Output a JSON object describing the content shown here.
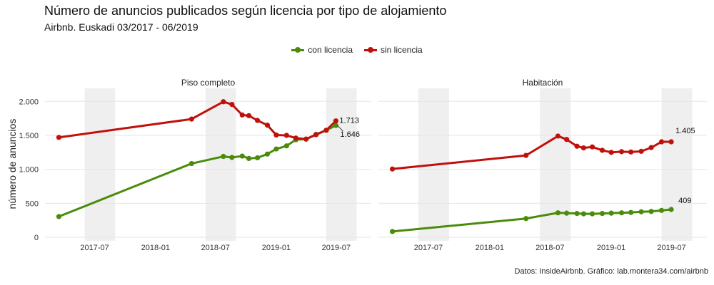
{
  "title": "Número de anuncios publicados según licencia por tipo de alojamiento",
  "subtitle": "Airbnb. Euskadi 03/2017 - 06/2019",
  "caption": "Datos: InsideAirbnb. Gráfico: lab.montera34.com/airbnb",
  "colors": {
    "con_licencia": "#4a8c0a",
    "sin_licencia": "#c0100c",
    "shade": "#efefef",
    "grid": "#e6e6e6"
  },
  "legend": [
    {
      "label": "con licencia",
      "color": "#4a8c0a"
    },
    {
      "label": "sin licencia",
      "color": "#c0100c"
    }
  ],
  "chart_data": {
    "type": "line",
    "ylabel": "número de anuncios",
    "ylim": [
      0,
      2150
    ],
    "yticks": [
      0,
      500,
      1000,
      1500,
      2000
    ],
    "ytick_labels": [
      "0",
      "500",
      "1.000",
      "1.500",
      "2.000"
    ],
    "xlim": [
      "2017-02-01",
      "2019-10-15"
    ],
    "xticks": [
      "2017-07-01",
      "2018-01-01",
      "2018-07-01",
      "2019-01-01",
      "2019-07-01"
    ],
    "xtick_labels": [
      "2017-07",
      "2018-01",
      "2018-07",
      "2019-01",
      "2019-07"
    ],
    "shaded_periods": [
      [
        "2017-06-01",
        "2017-09-01"
      ],
      [
        "2018-06-01",
        "2018-09-01"
      ],
      [
        "2019-06-01",
        "2019-09-01"
      ]
    ],
    "panels": [
      {
        "name": "Piso completo",
        "series": [
          {
            "name": "con licencia",
            "x": [
              "2017-03-15",
              "2018-04-20",
              "2018-07-25",
              "2018-08-20",
              "2018-09-20",
              "2018-10-10",
              "2018-11-05",
              "2018-12-05",
              "2019-01-01",
              "2019-02-01",
              "2019-03-01",
              "2019-04-01",
              "2019-05-01",
              "2019-06-01",
              "2019-06-30"
            ],
            "y": [
              305,
              1085,
              1190,
              1175,
              1195,
              1160,
              1170,
              1225,
              1300,
              1345,
              1435,
              1445,
              1515,
              1575,
              1646
            ]
          },
          {
            "name": "sin licencia",
            "x": [
              "2017-03-15",
              "2018-04-20",
              "2018-07-25",
              "2018-08-20",
              "2018-09-20",
              "2018-10-10",
              "2018-11-05",
              "2018-12-05",
              "2019-01-01",
              "2019-02-01",
              "2019-03-01",
              "2019-04-01",
              "2019-05-01",
              "2019-06-01",
              "2019-06-30"
            ],
            "y": [
              1470,
              1740,
              1995,
              1955,
              1800,
              1790,
              1720,
              1650,
              1505,
              1500,
              1460,
              1445,
              1510,
              1575,
              1713
            ]
          }
        ],
        "end_labels": [
          "1.646",
          "1.713"
        ]
      },
      {
        "name": "Habitación",
        "series": [
          {
            "name": "con licencia",
            "x": [
              "2017-03-15",
              "2018-04-20",
              "2018-07-25",
              "2018-08-20",
              "2018-09-20",
              "2018-10-10",
              "2018-11-05",
              "2018-12-05",
              "2019-01-01",
              "2019-02-01",
              "2019-03-01",
              "2019-04-01",
              "2019-05-01",
              "2019-06-01",
              "2019-06-30"
            ],
            "y": [
              85,
              275,
              360,
              355,
              350,
              345,
              345,
              350,
              355,
              360,
              365,
              375,
              380,
              395,
              409
            ]
          },
          {
            "name": "sin licencia",
            "x": [
              "2017-03-15",
              "2018-04-20",
              "2018-07-25",
              "2018-08-20",
              "2018-09-20",
              "2018-10-10",
              "2018-11-05",
              "2018-12-05",
              "2019-01-01",
              "2019-02-01",
              "2019-03-01",
              "2019-04-01",
              "2019-05-01",
              "2019-06-01",
              "2019-06-30"
            ],
            "y": [
              1005,
              1205,
              1490,
              1440,
              1340,
              1315,
              1330,
              1280,
              1250,
              1260,
              1255,
              1265,
              1320,
              1405,
              1405
            ]
          }
        ],
        "end_labels": [
          "409",
          "1.405"
        ]
      }
    ]
  }
}
